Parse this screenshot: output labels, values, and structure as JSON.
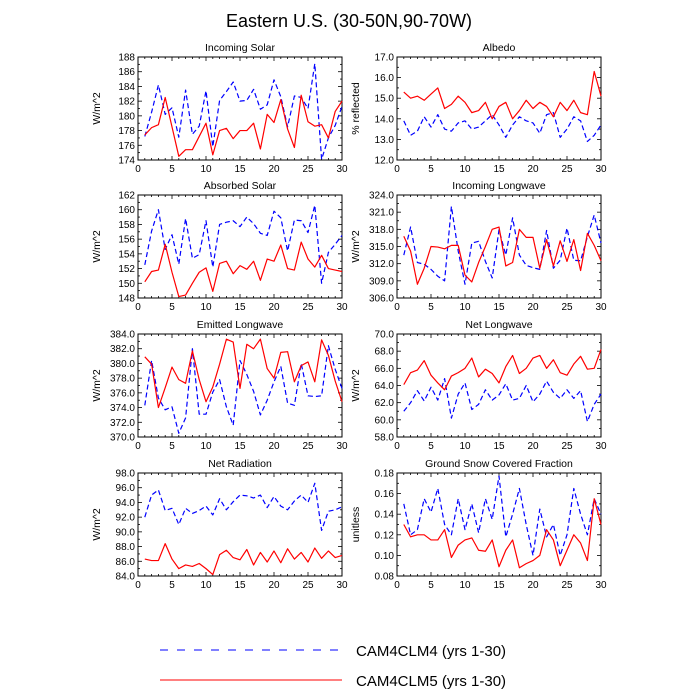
{
  "figure": {
    "title": "Eastern U.S. (30-50N,90-70W)"
  },
  "legend": [
    {
      "label": "CAM4CLM4 (yrs 1-30)",
      "color": "#0000ff",
      "dash": "dashed"
    },
    {
      "label": "CAM4CLM5 (yrs 1-30)",
      "color": "#ff0000",
      "dash": "solid"
    }
  ],
  "chart_data": [
    {
      "type": "line",
      "title": "Incoming Solar",
      "ylabel": "W/m^2",
      "xlim": [
        0,
        30
      ],
      "ylim": [
        174,
        188
      ],
      "xticks": [
        "0",
        "5",
        "10",
        "15",
        "20",
        "25",
        "30"
      ],
      "yticks": [
        "174",
        "176",
        "178",
        "180",
        "182",
        "184",
        "186",
        "188"
      ],
      "series": [
        {
          "name": "CAM4CLM4 (yrs 1-30)",
          "values": [
            177.2,
            180.5,
            184.2,
            180.2,
            181.1,
            177.1,
            183.5,
            177.5,
            178.6,
            183.4,
            175.8,
            182.1,
            183.3,
            184.6,
            182.0,
            182.1,
            183.6,
            180.9,
            181.5,
            184.9,
            182.6,
            178.5,
            182.7,
            182.5,
            181.0,
            187.1,
            174.1,
            177.0,
            178.7,
            181.3
          ]
        },
        {
          "name": "CAM4CLM5 (yrs 1-30)",
          "values": [
            177.4,
            178.4,
            178.8,
            182.5,
            178.5,
            174.5,
            175.4,
            175.4,
            177.2,
            179.0,
            174.7,
            178.0,
            178.3,
            176.9,
            178.0,
            178.0,
            179.0,
            175.5,
            180.2,
            179.1,
            182.2,
            178.2,
            175.7,
            182.8,
            179.2,
            178.6,
            178.8,
            177.0,
            180.6,
            182.0
          ]
        }
      ]
    },
    {
      "type": "line",
      "title": "Albedo",
      "ylabel": "% reflected",
      "xlim": [
        0,
        30
      ],
      "ylim": [
        12,
        17
      ],
      "xticks": [
        "0",
        "5",
        "10",
        "15",
        "20",
        "25",
        "30"
      ],
      "yticks": [
        "12.0",
        "13.0",
        "14.0",
        "15.0",
        "16.0",
        "17.0"
      ],
      "series": [
        {
          "name": "CAM4CLM4 (yrs 1-30)",
          "values": [
            13.9,
            13.2,
            13.4,
            14.1,
            13.6,
            14.2,
            13.5,
            13.4,
            13.8,
            13.9,
            13.5,
            13.6,
            13.9,
            14.2,
            13.7,
            13.1,
            13.7,
            14.1,
            13.9,
            13.8,
            13.3,
            14.2,
            14.3,
            13.1,
            13.5,
            14.1,
            13.9,
            12.9,
            13.2,
            13.7
          ]
        },
        {
          "name": "CAM4CLM5 (yrs 1-30)",
          "values": [
            15.3,
            15.0,
            15.1,
            14.9,
            15.2,
            15.5,
            14.5,
            14.7,
            15.1,
            14.8,
            14.3,
            14.4,
            14.8,
            14.0,
            14.6,
            14.8,
            14.0,
            14.4,
            14.9,
            14.5,
            14.8,
            14.6,
            14.1,
            14.8,
            14.4,
            14.9,
            14.3,
            14.2,
            16.3,
            15.1
          ]
        }
      ]
    },
    {
      "type": "line",
      "title": "Absorbed Solar",
      "ylabel": "W/m^2",
      "xlim": [
        0,
        30
      ],
      "ylim": [
        148,
        162
      ],
      "xticks": [
        "0",
        "5",
        "10",
        "15",
        "20",
        "25",
        "30"
      ],
      "yticks": [
        "148",
        "150",
        "152",
        "154",
        "156",
        "158",
        "160",
        "162"
      ],
      "series": [
        {
          "name": "CAM4CLM4 (yrs 1-30)",
          "values": [
            152.5,
            157.1,
            160.0,
            154.6,
            156.6,
            152.6,
            158.8,
            153.4,
            153.9,
            158.5,
            152.2,
            158.0,
            158.3,
            158.5,
            157.7,
            159.0,
            158.1,
            156.8,
            156.5,
            159.8,
            158.9,
            154.4,
            158.6,
            158.5,
            156.9,
            160.6,
            150.0,
            154.2,
            155.3,
            156.5
          ]
        },
        {
          "name": "CAM4CLM5 (yrs 1-30)",
          "values": [
            150.2,
            151.6,
            151.8,
            155.3,
            151.5,
            148.2,
            148.4,
            150.0,
            151.5,
            152.1,
            148.9,
            152.7,
            153.0,
            151.3,
            152.4,
            151.9,
            153.0,
            150.4,
            153.3,
            153.0,
            155.2,
            152.0,
            151.8,
            155.6,
            153.3,
            152.2,
            153.8,
            152.0,
            151.8,
            151.6
          ]
        }
      ]
    },
    {
      "type": "line",
      "title": "Incoming Longwave",
      "ylabel": "W/m^2",
      "xlim": [
        0,
        30
      ],
      "ylim": [
        306,
        324
      ],
      "xticks": [
        "0",
        "5",
        "10",
        "15",
        "20",
        "25",
        "30"
      ],
      "yticks": [
        "306.0",
        "309.0",
        "312.0",
        "315.0",
        "318.0",
        "321.0",
        "324.0"
      ],
      "series": [
        {
          "name": "CAM4CLM4 (yrs 1-30)",
          "values": [
            313.5,
            318.4,
            312.2,
            311.9,
            311.0,
            309.8,
            309.0,
            322.0,
            314.2,
            308.4,
            315.6,
            315.9,
            312.4,
            309.5,
            317.9,
            313.5,
            320.0,
            313.5,
            311.7,
            311.3,
            311.0,
            317.8,
            311.2,
            312.6,
            318.2,
            312.6,
            312.5,
            316.7,
            320.5,
            315.6
          ]
        },
        {
          "name": "CAM4CLM5 (yrs 1-30)",
          "values": [
            316.8,
            314.2,
            308.4,
            311.2,
            315.0,
            314.9,
            314.6,
            315.2,
            315.2,
            310.0,
            308.8,
            312.2,
            315.0,
            318.0,
            318.4,
            311.6,
            312.2,
            318.0,
            316.6,
            316.6,
            311.2,
            316.2,
            311.6,
            316.0,
            312.4,
            316.2,
            310.8,
            317.3,
            315.2,
            312.5
          ]
        }
      ]
    },
    {
      "type": "line",
      "title": "Emitted Longwave",
      "ylabel": "W/m^2",
      "xlim": [
        0,
        30
      ],
      "ylim": [
        370,
        384
      ],
      "xticks": [
        "0",
        "5",
        "10",
        "15",
        "20",
        "25",
        "30"
      ],
      "yticks": [
        "370.0",
        "372.0",
        "374.0",
        "376.0",
        "378.0",
        "380.0",
        "382.0",
        "384.0"
      ],
      "series": [
        {
          "name": "CAM4CLM4 (yrs 1-30)",
          "values": [
            374.3,
            380.4,
            375.3,
            373.7,
            374.1,
            370.5,
            372.6,
            382.0,
            373.1,
            373.1,
            376.1,
            377.8,
            374.1,
            371.6,
            380.4,
            378.5,
            376.2,
            373.0,
            375.0,
            377.5,
            379.6,
            374.6,
            374.3,
            380.0,
            375.6,
            375.5,
            375.6,
            382.4,
            379.2,
            376.6
          ]
        },
        {
          "name": "CAM4CLM5 (yrs 1-30)",
          "values": [
            380.9,
            379.9,
            374.0,
            376.7,
            379.5,
            377.8,
            377.3,
            381.7,
            377.8,
            374.8,
            376.8,
            379.9,
            383.3,
            382.9,
            376.6,
            382.6,
            382.0,
            383.3,
            379.3,
            378.0,
            381.5,
            381.6,
            377.5,
            379.7,
            380.2,
            377.5,
            383.2,
            381.1,
            377.6,
            374.8
          ]
        }
      ]
    },
    {
      "type": "line",
      "title": "Net Longwave",
      "ylabel": "W/m^2",
      "xlim": [
        0,
        30
      ],
      "ylim": [
        58,
        70
      ],
      "xticks": [
        "0",
        "5",
        "10",
        "15",
        "20",
        "25",
        "30"
      ],
      "yticks": [
        "58.0",
        "60.0",
        "62.0",
        "64.0",
        "66.0",
        "68.0",
        "70.0"
      ],
      "series": [
        {
          "name": "CAM4CLM4 (yrs 1-30)",
          "values": [
            61.0,
            62.0,
            63.4,
            62.2,
            63.8,
            62.3,
            64.8,
            60.2,
            63.0,
            64.3,
            61.2,
            61.8,
            63.5,
            62.3,
            62.9,
            64.2,
            62.3,
            62.5,
            64.0,
            62.1,
            63.0,
            64.5,
            63.2,
            62.5,
            63.5,
            62.5,
            63.4,
            59.8,
            61.8,
            63.0
          ]
        },
        {
          "name": "CAM4CLM5 (yrs 1-30)",
          "values": [
            64.1,
            65.5,
            65.8,
            66.9,
            65.2,
            64.3,
            63.5,
            65.1,
            65.5,
            66.0,
            67.2,
            65.0,
            65.9,
            65.4,
            64.3,
            66.2,
            67.5,
            65.4,
            66.0,
            67.2,
            67.5,
            66.0,
            67.0,
            65.5,
            65.2,
            66.5,
            67.4,
            65.9,
            66.0,
            68.2
          ]
        }
      ]
    },
    {
      "type": "line",
      "title": "Net Radiation",
      "ylabel": "W/m^2",
      "xlim": [
        0,
        30
      ],
      "ylim": [
        84,
        98
      ],
      "xticks": [
        "0",
        "5",
        "10",
        "15",
        "20",
        "25",
        "30"
      ],
      "yticks": [
        "84.0",
        "86.0",
        "88.0",
        "90.0",
        "92.0",
        "94.0",
        "96.0",
        "98.0"
      ],
      "series": [
        {
          "name": "CAM4CLM4 (yrs 1-30)",
          "values": [
            92.0,
            95.0,
            95.7,
            92.9,
            93.2,
            91.0,
            93.2,
            92.5,
            92.9,
            93.5,
            92.3,
            94.5,
            93.0,
            94.1,
            95.0,
            94.9,
            94.6,
            95.0,
            93.3,
            94.8,
            93.5,
            93.0,
            94.2,
            95.0,
            94.0,
            96.6,
            90.2,
            92.8,
            93.0,
            93.4
          ]
        },
        {
          "name": "CAM4CLM5 (yrs 1-30)",
          "values": [
            86.3,
            86.1,
            86.1,
            88.4,
            86.3,
            85.0,
            85.5,
            85.3,
            85.7,
            85.0,
            84.2,
            86.9,
            87.5,
            86.5,
            86.2,
            87.6,
            85.5,
            87.2,
            85.9,
            87.4,
            85.8,
            87.7,
            86.3,
            87.2,
            85.9,
            87.8,
            86.4,
            87.4,
            86.5,
            86.8
          ]
        }
      ]
    },
    {
      "type": "line",
      "title": "Ground Snow Covered Fraction",
      "ylabel": "unitless",
      "xlim": [
        0,
        30
      ],
      "ylim": [
        0.08,
        0.18
      ],
      "xticks": [
        "0",
        "5",
        "10",
        "15",
        "20",
        "25",
        "30"
      ],
      "yticks": [
        "0.08",
        "0.10",
        "0.12",
        "0.14",
        "0.16",
        "0.18"
      ],
      "series": [
        {
          "name": "CAM4CLM4 (yrs 1-30)",
          "values": [
            0.15,
            0.12,
            0.125,
            0.155,
            0.142,
            0.165,
            0.13,
            0.12,
            0.155,
            0.125,
            0.15,
            0.122,
            0.155,
            0.135,
            0.177,
            0.118,
            0.14,
            0.165,
            0.13,
            0.1,
            0.145,
            0.118,
            0.13,
            0.1,
            0.12,
            0.165,
            0.14,
            0.12,
            0.155,
            0.14
          ]
        },
        {
          "name": "CAM4CLM5 (yrs 1-30)",
          "values": [
            0.13,
            0.118,
            0.12,
            0.12,
            0.115,
            0.115,
            0.125,
            0.098,
            0.11,
            0.115,
            0.117,
            0.105,
            0.104,
            0.115,
            0.089,
            0.105,
            0.115,
            0.088,
            0.092,
            0.095,
            0.1,
            0.125,
            0.115,
            0.09,
            0.105,
            0.12,
            0.112,
            0.095,
            0.155,
            0.13
          ]
        }
      ]
    }
  ]
}
